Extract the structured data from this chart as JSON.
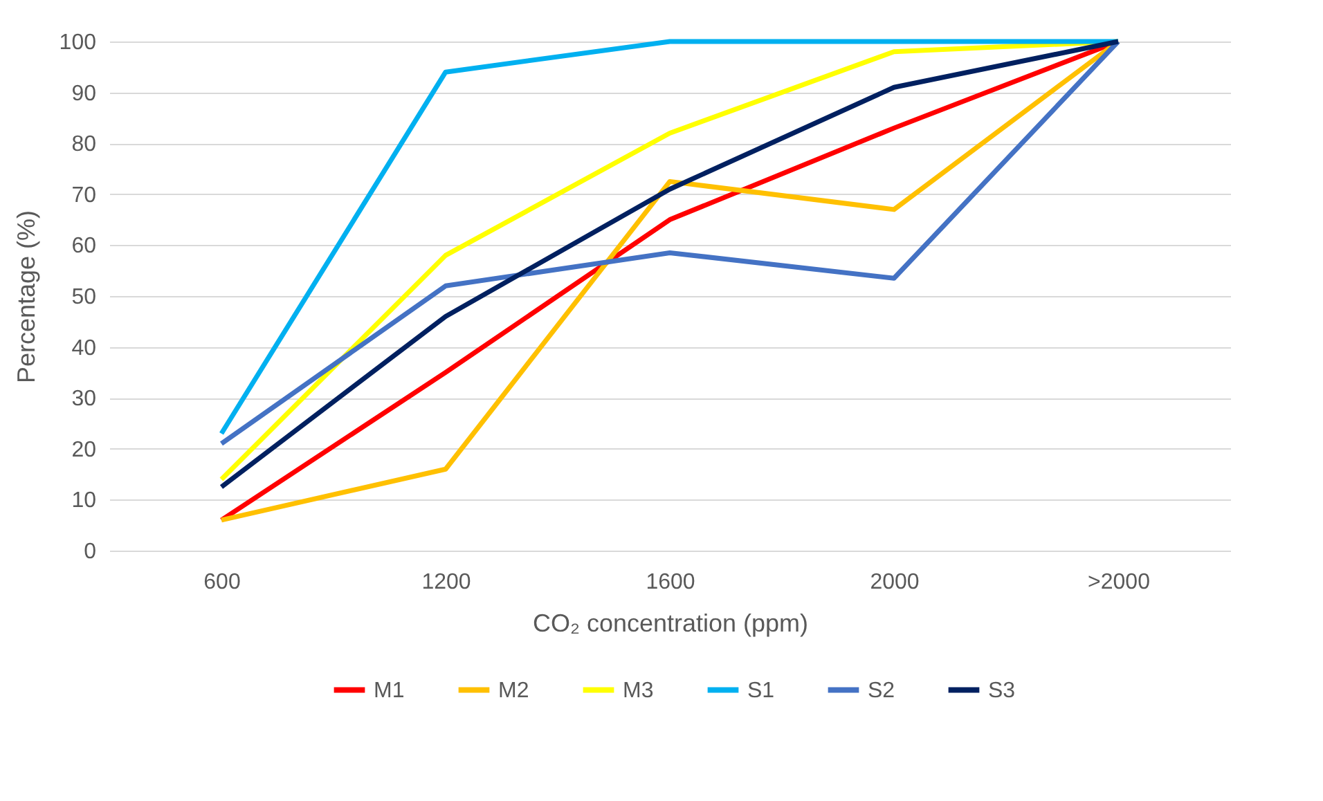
{
  "chart_data": {
    "type": "line",
    "xlabel": "CO₂ concentration (ppm)",
    "ylabel": "Percentage (%)",
    "categories": [
      "600",
      "1200",
      "1600",
      "2000",
      ">2000"
    ],
    "series": [
      {
        "name": "M1",
        "color": "#ff0000",
        "values": [
          6,
          35,
          65,
          83,
          100
        ]
      },
      {
        "name": "M2",
        "color": "#ffc000",
        "values": [
          6,
          16,
          72.5,
          67,
          100
        ]
      },
      {
        "name": "M3",
        "color": "#ffff00",
        "values": [
          14,
          58,
          82,
          98,
          100
        ]
      },
      {
        "name": "S1",
        "color": "#00b0f0",
        "values": [
          23,
          94,
          100,
          100,
          100
        ]
      },
      {
        "name": "S2",
        "color": "#4472c4",
        "values": [
          21,
          52,
          58.5,
          53.5,
          100
        ]
      },
      {
        "name": "S3",
        "color": "#002060",
        "values": [
          12.5,
          46,
          71,
          91,
          100
        ]
      }
    ],
    "ylim": [
      0,
      100
    ],
    "yticks": [
      0,
      10,
      20,
      30,
      40,
      50,
      60,
      70,
      80,
      90,
      100
    ],
    "grid": "y",
    "legend": "bottom",
    "marker": "none",
    "line_style": "solid"
  }
}
